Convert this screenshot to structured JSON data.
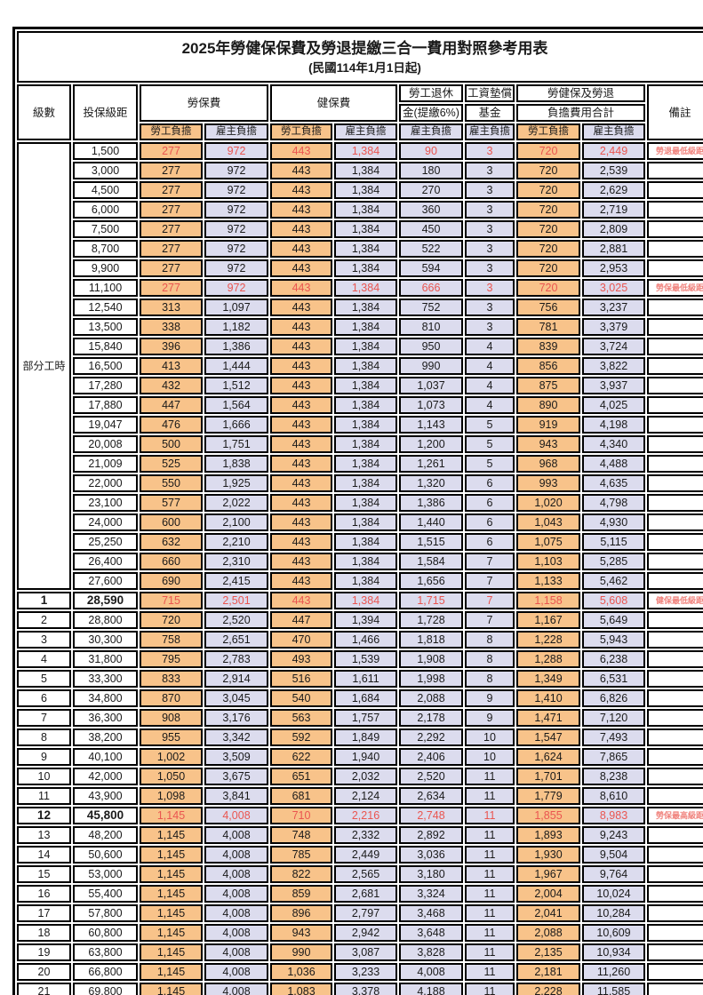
{
  "title": {
    "main": "2025年勞健保保費及勞退提繳三合一費用對照參考用表",
    "sub": "(民國114年1月1日起)"
  },
  "colors": {
    "employee_fill": "#f8c38a",
    "employer_fill": "#dcdcee",
    "red_text": "#ea5550",
    "remark_red": "#f0827c",
    "grid": "#000000",
    "text": "#1a1a1a",
    "background": "#ffffff"
  },
  "table": {
    "headers": {
      "level": "級數",
      "bracket": "投保級距",
      "labor": "勞保費",
      "health": "健保費",
      "pension_line1": "勞工退休",
      "pension_line2": "金(提繳6%)",
      "fund_line1": "工資墊償",
      "fund_line2": "基金",
      "total_line1": "勞健保及勞退",
      "total_line2": "負擔費用合計",
      "remark": "備註"
    },
    "sub_headers": {
      "employee": "勞工負擔",
      "employer": "雇主負擔"
    },
    "part_time_label": "部分工時",
    "part_time_rowspan": 23,
    "rows": [
      {
        "level": "",
        "bracket": "1,500",
        "values": [
          "277",
          "972",
          "443",
          "1,384",
          "90",
          "3",
          "720",
          "2,449"
        ],
        "remark": "勞退最低級距",
        "red": true,
        "em": false
      },
      {
        "level": "",
        "bracket": "3,000",
        "values": [
          "277",
          "972",
          "443",
          "1,384",
          "180",
          "3",
          "720",
          "2,539"
        ],
        "remark": "",
        "red": false,
        "em": false
      },
      {
        "level": "",
        "bracket": "4,500",
        "values": [
          "277",
          "972",
          "443",
          "1,384",
          "270",
          "3",
          "720",
          "2,629"
        ],
        "remark": "",
        "red": false,
        "em": false
      },
      {
        "level": "",
        "bracket": "6,000",
        "values": [
          "277",
          "972",
          "443",
          "1,384",
          "360",
          "3",
          "720",
          "2,719"
        ],
        "remark": "",
        "red": false,
        "em": false
      },
      {
        "level": "",
        "bracket": "7,500",
        "values": [
          "277",
          "972",
          "443",
          "1,384",
          "450",
          "3",
          "720",
          "2,809"
        ],
        "remark": "",
        "red": false,
        "em": false
      },
      {
        "level": "",
        "bracket": "8,700",
        "values": [
          "277",
          "972",
          "443",
          "1,384",
          "522",
          "3",
          "720",
          "2,881"
        ],
        "remark": "",
        "red": false,
        "em": false
      },
      {
        "level": "",
        "bracket": "9,900",
        "values": [
          "277",
          "972",
          "443",
          "1,384",
          "594",
          "3",
          "720",
          "2,953"
        ],
        "remark": "",
        "red": false,
        "em": false
      },
      {
        "level": "",
        "bracket": "11,100",
        "values": [
          "277",
          "972",
          "443",
          "1,384",
          "666",
          "3",
          "720",
          "3,025"
        ],
        "remark": "勞保最低級距",
        "red": true,
        "em": false
      },
      {
        "level": "",
        "bracket": "12,540",
        "values": [
          "313",
          "1,097",
          "443",
          "1,384",
          "752",
          "3",
          "756",
          "3,237"
        ],
        "remark": "",
        "red": false,
        "em": false
      },
      {
        "level": "",
        "bracket": "13,500",
        "values": [
          "338",
          "1,182",
          "443",
          "1,384",
          "810",
          "3",
          "781",
          "3,379"
        ],
        "remark": "",
        "red": false,
        "em": false
      },
      {
        "level": "",
        "bracket": "15,840",
        "values": [
          "396",
          "1,386",
          "443",
          "1,384",
          "950",
          "4",
          "839",
          "3,724"
        ],
        "remark": "",
        "red": false,
        "em": false
      },
      {
        "level": "",
        "bracket": "16,500",
        "values": [
          "413",
          "1,444",
          "443",
          "1,384",
          "990",
          "4",
          "856",
          "3,822"
        ],
        "remark": "",
        "red": false,
        "em": false
      },
      {
        "level": "",
        "bracket": "17,280",
        "values": [
          "432",
          "1,512",
          "443",
          "1,384",
          "1,037",
          "4",
          "875",
          "3,937"
        ],
        "remark": "",
        "red": false,
        "em": false
      },
      {
        "level": "",
        "bracket": "17,880",
        "values": [
          "447",
          "1,564",
          "443",
          "1,384",
          "1,073",
          "4",
          "890",
          "4,025"
        ],
        "remark": "",
        "red": false,
        "em": false
      },
      {
        "level": "",
        "bracket": "19,047",
        "values": [
          "476",
          "1,666",
          "443",
          "1,384",
          "1,143",
          "5",
          "919",
          "4,198"
        ],
        "remark": "",
        "red": false,
        "em": false
      },
      {
        "level": "",
        "bracket": "20,008",
        "values": [
          "500",
          "1,751",
          "443",
          "1,384",
          "1,200",
          "5",
          "943",
          "4,340"
        ],
        "remark": "",
        "red": false,
        "em": false
      },
      {
        "level": "",
        "bracket": "21,009",
        "values": [
          "525",
          "1,838",
          "443",
          "1,384",
          "1,261",
          "5",
          "968",
          "4,488"
        ],
        "remark": "",
        "red": false,
        "em": false
      },
      {
        "level": "",
        "bracket": "22,000",
        "values": [
          "550",
          "1,925",
          "443",
          "1,384",
          "1,320",
          "6",
          "993",
          "4,635"
        ],
        "remark": "",
        "red": false,
        "em": false
      },
      {
        "level": "",
        "bracket": "23,100",
        "values": [
          "577",
          "2,022",
          "443",
          "1,384",
          "1,386",
          "6",
          "1,020",
          "4,798"
        ],
        "remark": "",
        "red": false,
        "em": false
      },
      {
        "level": "",
        "bracket": "24,000",
        "values": [
          "600",
          "2,100",
          "443",
          "1,384",
          "1,440",
          "6",
          "1,043",
          "4,930"
        ],
        "remark": "",
        "red": false,
        "em": false
      },
      {
        "level": "",
        "bracket": "25,250",
        "values": [
          "632",
          "2,210",
          "443",
          "1,384",
          "1,515",
          "6",
          "1,075",
          "5,115"
        ],
        "remark": "",
        "red": false,
        "em": false
      },
      {
        "level": "",
        "bracket": "26,400",
        "values": [
          "660",
          "2,310",
          "443",
          "1,384",
          "1,584",
          "7",
          "1,103",
          "5,285"
        ],
        "remark": "",
        "red": false,
        "em": false
      },
      {
        "level": "",
        "bracket": "27,600",
        "values": [
          "690",
          "2,415",
          "443",
          "1,384",
          "1,656",
          "7",
          "1,133",
          "5,462"
        ],
        "remark": "",
        "red": false,
        "em": false
      },
      {
        "level": "1",
        "bracket": "28,590",
        "values": [
          "715",
          "2,501",
          "443",
          "1,384",
          "1,715",
          "7",
          "1,158",
          "5,608"
        ],
        "remark": "健保最低級距",
        "red": true,
        "em": true
      },
      {
        "level": "2",
        "bracket": "28,800",
        "values": [
          "720",
          "2,520",
          "447",
          "1,394",
          "1,728",
          "7",
          "1,167",
          "5,649"
        ],
        "remark": "",
        "red": false,
        "em": false
      },
      {
        "level": "3",
        "bracket": "30,300",
        "values": [
          "758",
          "2,651",
          "470",
          "1,466",
          "1,818",
          "8",
          "1,228",
          "5,943"
        ],
        "remark": "",
        "red": false,
        "em": false
      },
      {
        "level": "4",
        "bracket": "31,800",
        "values": [
          "795",
          "2,783",
          "493",
          "1,539",
          "1,908",
          "8",
          "1,288",
          "6,238"
        ],
        "remark": "",
        "red": false,
        "em": false
      },
      {
        "level": "5",
        "bracket": "33,300",
        "values": [
          "833",
          "2,914",
          "516",
          "1,611",
          "1,998",
          "8",
          "1,349",
          "6,531"
        ],
        "remark": "",
        "red": false,
        "em": false
      },
      {
        "level": "6",
        "bracket": "34,800",
        "values": [
          "870",
          "3,045",
          "540",
          "1,684",
          "2,088",
          "9",
          "1,410",
          "6,826"
        ],
        "remark": "",
        "red": false,
        "em": false
      },
      {
        "level": "7",
        "bracket": "36,300",
        "values": [
          "908",
          "3,176",
          "563",
          "1,757",
          "2,178",
          "9",
          "1,471",
          "7,120"
        ],
        "remark": "",
        "red": false,
        "em": false
      },
      {
        "level": "8",
        "bracket": "38,200",
        "values": [
          "955",
          "3,342",
          "592",
          "1,849",
          "2,292",
          "10",
          "1,547",
          "7,493"
        ],
        "remark": "",
        "red": false,
        "em": false
      },
      {
        "level": "9",
        "bracket": "40,100",
        "values": [
          "1,002",
          "3,509",
          "622",
          "1,940",
          "2,406",
          "10",
          "1,624",
          "7,865"
        ],
        "remark": "",
        "red": false,
        "em": false
      },
      {
        "level": "10",
        "bracket": "42,000",
        "values": [
          "1,050",
          "3,675",
          "651",
          "2,032",
          "2,520",
          "11",
          "1,701",
          "8,238"
        ],
        "remark": "",
        "red": false,
        "em": false
      },
      {
        "level": "11",
        "bracket": "43,900",
        "values": [
          "1,098",
          "3,841",
          "681",
          "2,124",
          "2,634",
          "11",
          "1,779",
          "8,610"
        ],
        "remark": "",
        "red": false,
        "em": false
      },
      {
        "level": "12",
        "bracket": "45,800",
        "values": [
          "1,145",
          "4,008",
          "710",
          "2,216",
          "2,748",
          "11",
          "1,855",
          "8,983"
        ],
        "remark": "勞保最高級距",
        "red": true,
        "em": true
      },
      {
        "level": "13",
        "bracket": "48,200",
        "values": [
          "1,145",
          "4,008",
          "748",
          "2,332",
          "2,892",
          "11",
          "1,893",
          "9,243"
        ],
        "remark": "",
        "red": false,
        "em": false
      },
      {
        "level": "14",
        "bracket": "50,600",
        "values": [
          "1,145",
          "4,008",
          "785",
          "2,449",
          "3,036",
          "11",
          "1,930",
          "9,504"
        ],
        "remark": "",
        "red": false,
        "em": false
      },
      {
        "level": "15",
        "bracket": "53,000",
        "values": [
          "1,145",
          "4,008",
          "822",
          "2,565",
          "3,180",
          "11",
          "1,967",
          "9,764"
        ],
        "remark": "",
        "red": false,
        "em": false
      },
      {
        "level": "16",
        "bracket": "55,400",
        "values": [
          "1,145",
          "4,008",
          "859",
          "2,681",
          "3,324",
          "11",
          "2,004",
          "10,024"
        ],
        "remark": "",
        "red": false,
        "em": false
      },
      {
        "level": "17",
        "bracket": "57,800",
        "values": [
          "1,145",
          "4,008",
          "896",
          "2,797",
          "3,468",
          "11",
          "2,041",
          "10,284"
        ],
        "remark": "",
        "red": false,
        "em": false
      },
      {
        "level": "18",
        "bracket": "60,800",
        "values": [
          "1,145",
          "4,008",
          "943",
          "2,942",
          "3,648",
          "11",
          "2,088",
          "10,609"
        ],
        "remark": "",
        "red": false,
        "em": false
      },
      {
        "level": "19",
        "bracket": "63,800",
        "values": [
          "1,145",
          "4,008",
          "990",
          "3,087",
          "3,828",
          "11",
          "2,135",
          "10,934"
        ],
        "remark": "",
        "red": false,
        "em": false
      },
      {
        "level": "20",
        "bracket": "66,800",
        "values": [
          "1,145",
          "4,008",
          "1,036",
          "3,233",
          "4,008",
          "11",
          "2,181",
          "11,260"
        ],
        "remark": "",
        "red": false,
        "em": false
      },
      {
        "level": "21",
        "bracket": "69,800",
        "values": [
          "1,145",
          "4,008",
          "1,083",
          "3,378",
          "4,188",
          "11",
          "2,228",
          "11,585"
        ],
        "remark": "",
        "red": false,
        "em": false
      }
    ]
  }
}
